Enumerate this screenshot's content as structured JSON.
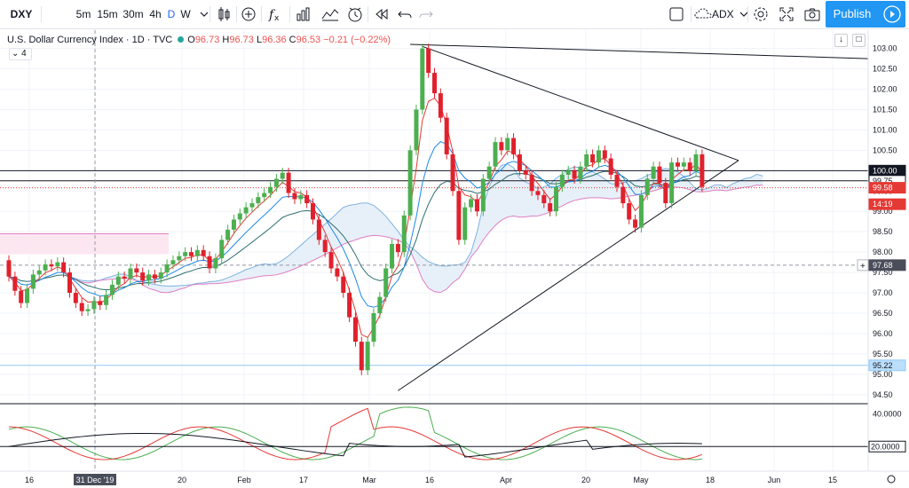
{
  "toolbar": {
    "symbol": "DXY",
    "intervals": [
      "5m",
      "15m",
      "30m",
      "4h",
      "D",
      "W"
    ],
    "active_interval": "D",
    "compare_label": "ADX",
    "publish_label": "Publish",
    "icons": [
      "chevron-down-icon",
      "candles-icon",
      "plus-circle-icon",
      "fx-icon",
      "indicators-icon",
      "templates-icon",
      "alert-icon",
      "replay-icon",
      "undo-icon",
      "redo-icon",
      "layout-square-icon",
      "cloud-icon",
      "gear-icon",
      "fullscreen-icon",
      "camera-icon",
      "play-icon"
    ]
  },
  "legend": {
    "title": "U.S. Dollar Currency Index · 1D · TVC",
    "o_label": "O",
    "o_value": "96.73",
    "h_label": "H",
    "h_value": "96.73",
    "l_label": "L",
    "l_value": "96.36",
    "c_label": "C",
    "c_value": "96.53",
    "change": "−0.21 (−0.22%)",
    "indicator_toggle": "4"
  },
  "colors": {
    "up": "#26a69a",
    "down": "#ef5350",
    "candle_up": "#4caf50",
    "candle_down": "#e0212d",
    "accent": "#2196f3"
  },
  "chart_data": {
    "type": "candlestick",
    "price_axis": {
      "ticks": [
        "103.00",
        "102.50",
        "102.00",
        "101.50",
        "101.00",
        "100.50",
        "100.00",
        "99.50",
        "99.00",
        "98.50",
        "98.00",
        "97.50",
        "97.00",
        "96.50",
        "96.00",
        "95.50",
        "95.00",
        "94.50"
      ],
      "ylim": [
        94.3,
        103.1
      ],
      "markers": [
        {
          "label": "100.00",
          "value": 100.0,
          "style": "black"
        },
        {
          "label": "99.75",
          "value": 99.75,
          "style": "outline"
        },
        {
          "label": "99.58",
          "value": 99.58,
          "style": "red"
        },
        {
          "label": "14:19",
          "value": 99.35,
          "style": "red"
        },
        {
          "label": "97.68",
          "value": 97.68,
          "style": "gray"
        },
        {
          "label": "95.22",
          "value": 95.22,
          "style": "blue"
        }
      ]
    },
    "time_axis": {
      "labels": [
        "16",
        "31 Dec '19",
        "20",
        "Feb",
        "17",
        "Mar",
        "16",
        "Apr",
        "20",
        "May",
        "18",
        "Jun",
        "15"
      ]
    },
    "lower_pane": {
      "indicator": "ADX",
      "ticks": [
        "40.0000",
        "20.0000"
      ],
      "ylim": [
        5,
        45
      ],
      "level_label": "20.0000"
    },
    "candles": [
      {
        "o": 97.8,
        "c": 97.4
      },
      {
        "o": 97.4,
        "c": 97.05
      },
      {
        "o": 97.05,
        "c": 96.75
      },
      {
        "o": 96.75,
        "c": 97.1
      },
      {
        "o": 97.1,
        "c": 97.45
      },
      {
        "o": 97.45,
        "c": 97.55
      },
      {
        "o": 97.55,
        "c": 97.7
      },
      {
        "o": 97.7,
        "c": 97.65
      },
      {
        "o": 97.65,
        "c": 97.75
      },
      {
        "o": 97.75,
        "c": 97.5
      },
      {
        "o": 97.5,
        "c": 97.0
      },
      {
        "o": 97.0,
        "c": 96.75
      },
      {
        "o": 96.75,
        "c": 96.55
      },
      {
        "o": 96.55,
        "c": 96.6
      },
      {
        "o": 96.6,
        "c": 96.8
      },
      {
        "o": 96.8,
        "c": 96.7
      },
      {
        "o": 96.7,
        "c": 96.95
      },
      {
        "o": 96.95,
        "c": 97.2
      },
      {
        "o": 97.2,
        "c": 97.4
      },
      {
        "o": 97.4,
        "c": 97.35
      },
      {
        "o": 97.35,
        "c": 97.6
      },
      {
        "o": 97.6,
        "c": 97.5
      },
      {
        "o": 97.5,
        "c": 97.3
      },
      {
        "o": 97.3,
        "c": 97.45
      },
      {
        "o": 97.45,
        "c": 97.35
      },
      {
        "o": 97.35,
        "c": 97.5
      },
      {
        "o": 97.5,
        "c": 97.7
      },
      {
        "o": 97.7,
        "c": 97.8
      },
      {
        "o": 97.8,
        "c": 97.9
      },
      {
        "o": 97.9,
        "c": 98.0
      },
      {
        "o": 98.0,
        "c": 97.9
      },
      {
        "o": 97.9,
        "c": 98.05
      },
      {
        "o": 98.05,
        "c": 97.9
      },
      {
        "o": 97.9,
        "c": 97.6
      },
      {
        "o": 97.6,
        "c": 97.85
      },
      {
        "o": 97.85,
        "c": 98.3
      },
      {
        "o": 98.3,
        "c": 98.55
      },
      {
        "o": 98.55,
        "c": 98.8
      },
      {
        "o": 98.8,
        "c": 98.95
      },
      {
        "o": 98.95,
        "c": 99.1
      },
      {
        "o": 99.1,
        "c": 99.2
      },
      {
        "o": 99.2,
        "c": 99.35
      },
      {
        "o": 99.35,
        "c": 99.45
      },
      {
        "o": 99.45,
        "c": 99.6
      },
      {
        "o": 99.6,
        "c": 99.8
      },
      {
        "o": 99.8,
        "c": 99.95
      },
      {
        "o": 99.95,
        "c": 99.45
      },
      {
        "o": 99.45,
        "c": 99.3
      },
      {
        "o": 99.3,
        "c": 99.4
      },
      {
        "o": 99.4,
        "c": 99.2
      },
      {
        "o": 99.2,
        "c": 98.8
      },
      {
        "o": 98.8,
        "c": 98.3
      },
      {
        "o": 98.3,
        "c": 98.0
      },
      {
        "o": 98.0,
        "c": 97.6
      },
      {
        "o": 97.6,
        "c": 97.4
      },
      {
        "o": 97.4,
        "c": 97.0
      },
      {
        "o": 97.0,
        "c": 96.4
      },
      {
        "o": 96.4,
        "c": 95.8
      },
      {
        "o": 95.8,
        "c": 95.1
      },
      {
        "o": 95.1,
        "c": 95.8
      },
      {
        "o": 95.8,
        "c": 96.5
      },
      {
        "o": 96.5,
        "c": 96.9
      },
      {
        "o": 96.9,
        "c": 97.6
      },
      {
        "o": 97.6,
        "c": 98.2
      },
      {
        "o": 98.2,
        "c": 98.0
      },
      {
        "o": 98.0,
        "c": 98.9
      },
      {
        "o": 98.9,
        "c": 100.5
      },
      {
        "o": 100.5,
        "c": 101.5
      },
      {
        "o": 101.5,
        "c": 103.0
      },
      {
        "o": 103.0,
        "c": 102.4
      },
      {
        "o": 102.4,
        "c": 101.9
      },
      {
        "o": 101.9,
        "c": 101.3
      },
      {
        "o": 101.3,
        "c": 100.4
      },
      {
        "o": 100.4,
        "c": 99.5
      },
      {
        "o": 99.5,
        "c": 98.3
      },
      {
        "o": 98.3,
        "c": 99.1
      },
      {
        "o": 99.1,
        "c": 99.3
      },
      {
        "o": 99.3,
        "c": 99.0
      },
      {
        "o": 99.0,
        "c": 99.8
      },
      {
        "o": 99.8,
        "c": 100.1
      },
      {
        "o": 100.1,
        "c": 100.7
      },
      {
        "o": 100.7,
        "c": 100.5
      },
      {
        "o": 100.5,
        "c": 100.8
      },
      {
        "o": 100.8,
        "c": 100.4
      },
      {
        "o": 100.4,
        "c": 100.0
      },
      {
        "o": 100.0,
        "c": 99.9
      },
      {
        "o": 99.9,
        "c": 99.5
      },
      {
        "o": 99.5,
        "c": 99.4
      },
      {
        "o": 99.4,
        "c": 99.2
      },
      {
        "o": 99.2,
        "c": 99.0
      },
      {
        "o": 99.0,
        "c": 99.6
      },
      {
        "o": 99.6,
        "c": 99.9
      },
      {
        "o": 99.9,
        "c": 100.0
      },
      {
        "o": 100.0,
        "c": 99.8
      },
      {
        "o": 99.8,
        "c": 100.1
      },
      {
        "o": 100.1,
        "c": 100.4
      },
      {
        "o": 100.4,
        "c": 100.2
      },
      {
        "o": 100.2,
        "c": 100.5
      },
      {
        "o": 100.5,
        "c": 100.3
      },
      {
        "o": 100.3,
        "c": 99.9
      },
      {
        "o": 99.9,
        "c": 99.6
      },
      {
        "o": 99.6,
        "c": 99.2
      },
      {
        "o": 99.2,
        "c": 98.8
      },
      {
        "o": 98.8,
        "c": 98.6
      },
      {
        "o": 98.6,
        "c": 99.4
      },
      {
        "o": 99.4,
        "c": 99.8
      },
      {
        "o": 99.8,
        "c": 100.1
      },
      {
        "o": 100.1,
        "c": 99.7
      },
      {
        "o": 99.7,
        "c": 99.2
      },
      {
        "o": 99.2,
        "c": 100.2
      },
      {
        "o": 100.2,
        "c": 100.1
      },
      {
        "o": 100.1,
        "c": 100.2
      },
      {
        "o": 100.2,
        "c": 100.0
      },
      {
        "o": 100.0,
        "c": 100.4
      },
      {
        "o": 100.4,
        "c": 99.6
      }
    ]
  }
}
